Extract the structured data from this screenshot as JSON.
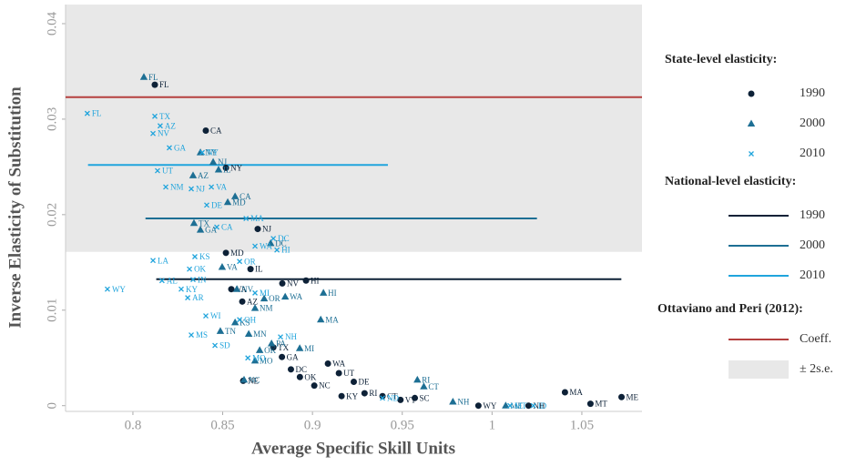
{
  "chart_data": {
    "type": "scatter",
    "x_label": "Average Specific Skill Units",
    "y_label": "Inverse Elasticity of Substitution",
    "xlim": [
      0.7625,
      1.0835
    ],
    "ylim": [
      -0.0006,
      0.042
    ],
    "xticks": [
      0.8,
      0.85,
      0.9,
      0.95,
      1,
      1.05
    ],
    "yticks": [
      0,
      0.01,
      0.02,
      0.03,
      0.04
    ],
    "legend_state_title": "State-level elasticity:",
    "legend_national_title": "National-level elasticity:",
    "legend_op_title": "Ottaviano and Peri (2012):",
    "series": [
      {
        "name": "1990",
        "color": "#0d2137",
        "marker": "circle",
        "x": [
          0.8122,
          0.8406,
          0.8518,
          0.8695,
          0.8518,
          0.8655,
          0.8964,
          0.8832,
          0.8548,
          0.8609,
          0.8614,
          1.0406,
          1.0721,
          1.0548,
          0.9924,
          1.0203,
          0.8782,
          0.883,
          0.888,
          0.893,
          0.901,
          0.9086,
          0.9147,
          0.923,
          0.929,
          0.939,
          0.949,
          0.957,
          0.9162
        ],
        "values": [
          0.0336,
          0.0288,
          0.0249,
          0.0185,
          0.016,
          0.0143,
          0.0131,
          0.0128,
          0.0122,
          0.0109,
          0.0026,
          0.0014,
          0.0009,
          0.0002,
          0,
          0,
          0.0061,
          0.0051,
          0.0038,
          0.003,
          0.0021,
          0.0044,
          0.0034,
          0.0025,
          0.0013,
          0.001,
          0.0006,
          0.0008,
          0.001
        ],
        "labels": [
          "FL",
          "CA",
          "NY",
          "NJ",
          "MD",
          "IL",
          "HI",
          "NV",
          "VA",
          "AZ",
          "NE",
          "MA",
          "ME",
          "MT",
          "WY",
          "NH",
          "TX",
          "GA",
          "DC",
          "OK",
          "NC",
          "WA",
          "UT",
          "DE",
          "RI",
          "CT",
          "VT",
          "SC",
          "KY"
        ]
      },
      {
        "name": "2000",
        "color": "#1d6f94",
        "marker": "triangle",
        "x": [
          0.8061,
          0.8376,
          0.8447,
          0.834,
          0.8569,
          0.8528,
          0.8477,
          0.8335,
          0.8376,
          0.8767,
          0.9061,
          0.8497,
          0.8579,
          0.8731,
          0.8848,
          0.868,
          0.9046,
          0.8772,
          0.8929,
          0.8645,
          0.8706,
          0.8487,
          0.9584,
          0.962,
          0.9782,
          1.0076,
          0.868,
          0.8619,
          0.8569
        ],
        "values": [
          0.0344,
          0.0265,
          0.0255,
          0.0191,
          0.0219,
          0.0213,
          0.0247,
          0.0241,
          0.0184,
          0.017,
          0.0118,
          0.0145,
          0.0122,
          0.0112,
          0.0114,
          0.0102,
          0.009,
          0.0065,
          0.006,
          0.0075,
          0.0058,
          0.0078,
          0.0027,
          0.002,
          0.0004,
          0,
          0.0047,
          0.0027,
          0.0087
        ],
        "labels": [
          "FL",
          "NY",
          "NJ",
          "TX",
          "CA",
          "MD",
          "IL",
          "AZ",
          "GA",
          "DC",
          "HI",
          "VA",
          "NV",
          "OR",
          "WA",
          "NM",
          "MA",
          "PA",
          "MI",
          "MN",
          "OK",
          "TN",
          "RI",
          "CT",
          "NH",
          "ME",
          "MO",
          "NC",
          "KS"
        ]
      },
      {
        "name": "2010",
        "color": "#20a4dc",
        "marker": "cross",
        "x": [
          0.7746,
          0.8122,
          0.8152,
          0.8112,
          0.8203,
          0.8386,
          0.8137,
          0.8183,
          0.8325,
          0.8437,
          0.8411,
          0.863,
          0.8467,
          0.868,
          0.8782,
          0.8802,
          0.8594,
          0.8345,
          0.8112,
          0.8315,
          0.8162,
          0.8335,
          0.7858,
          0.8269,
          0.868,
          0.8305,
          0.8406,
          0.8594,
          0.8325,
          0.8457,
          0.8822,
          0.864,
          0.939,
          1.01,
          1.023
        ],
        "values": [
          0.0306,
          0.0303,
          0.0293,
          0.0285,
          0.027,
          0.0265,
          0.0246,
          0.0229,
          0.0227,
          0.0229,
          0.021,
          0.0196,
          0.0187,
          0.0167,
          0.0175,
          0.0163,
          0.0151,
          0.0156,
          0.0152,
          0.0143,
          0.0131,
          0.0132,
          0.0122,
          0.0122,
          0.0118,
          0.0113,
          0.0094,
          0.009,
          0.0074,
          0.0063,
          0.0072,
          0.005,
          0.0008,
          0,
          0
        ],
        "labels": [
          "FL",
          "TX",
          "AZ",
          "NV",
          "GA",
          "NY",
          "UT",
          "NM",
          "NJ",
          "VA",
          "DE",
          "MA",
          "CA",
          "WA",
          "DC",
          "HI",
          "OR",
          "KS",
          "LA",
          "OK",
          "AL",
          "IN",
          "WY",
          "KY",
          "MI",
          "AR",
          "WI",
          "OH",
          "MS",
          "SD",
          "NH",
          "MO",
          "ND",
          "MT",
          "ID"
        ]
      }
    ],
    "national": [
      {
        "name": "1990",
        "color": "#0d2137",
        "value": 0.01324,
        "x": [
          0.813,
          1.072
        ]
      },
      {
        "name": "2000",
        "color": "#1d6f94",
        "value": 0.0196,
        "x": [
          0.807,
          1.025
        ]
      },
      {
        "name": "2010",
        "color": "#20a4dc",
        "value": 0.0252,
        "x": [
          0.775,
          0.942
        ]
      }
    ],
    "coefficient": {
      "name": "Coeff.",
      "color": "#b5403f",
      "value": 0.0323
    },
    "band": {
      "name": "± 2s.e.",
      "color": "#e8e8e8",
      "range": [
        0.0161,
        0.0485
      ]
    }
  }
}
